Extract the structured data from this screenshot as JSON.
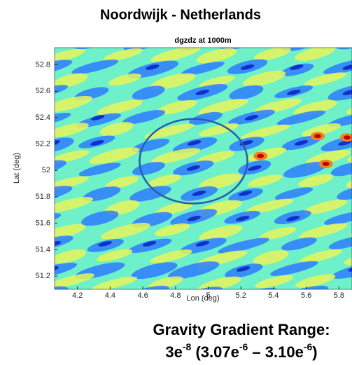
{
  "chart_data": {
    "type": "heatmap",
    "title": "Noordwijk - Netherlands",
    "subtitle": "dgzdz at 1000m",
    "x_label": "Lon (deg)",
    "y_label": "Lat (deg)",
    "xlim": [
      4.06,
      5.88
    ],
    "ylim": [
      51.1,
      52.93
    ],
    "xticks": [
      4.2,
      4.4,
      4.6,
      4.8,
      5,
      5.2,
      5.4,
      5.6,
      5.8
    ],
    "yticks": [
      51.2,
      51.4,
      51.6,
      51.8,
      52,
      52.2,
      52.4,
      52.6,
      52.8
    ],
    "region": {
      "center": [
        4.91,
        52.07
      ],
      "radii": [
        0.33,
        0.32
      ],
      "color": "#2a5ca8"
    },
    "annotation": "Gravity Gradient Range:",
    "range_label": [
      {
        "text": "3e"
      },
      {
        "text": "-8",
        "sup": true
      },
      {
        "text": " (3.07e"
      },
      {
        "text": "-6",
        "sup": true
      },
      {
        "text": " – 3.10e"
      },
      {
        "text": "-6",
        "sup": true
      },
      {
        "text": ")"
      }
    ]
  }
}
